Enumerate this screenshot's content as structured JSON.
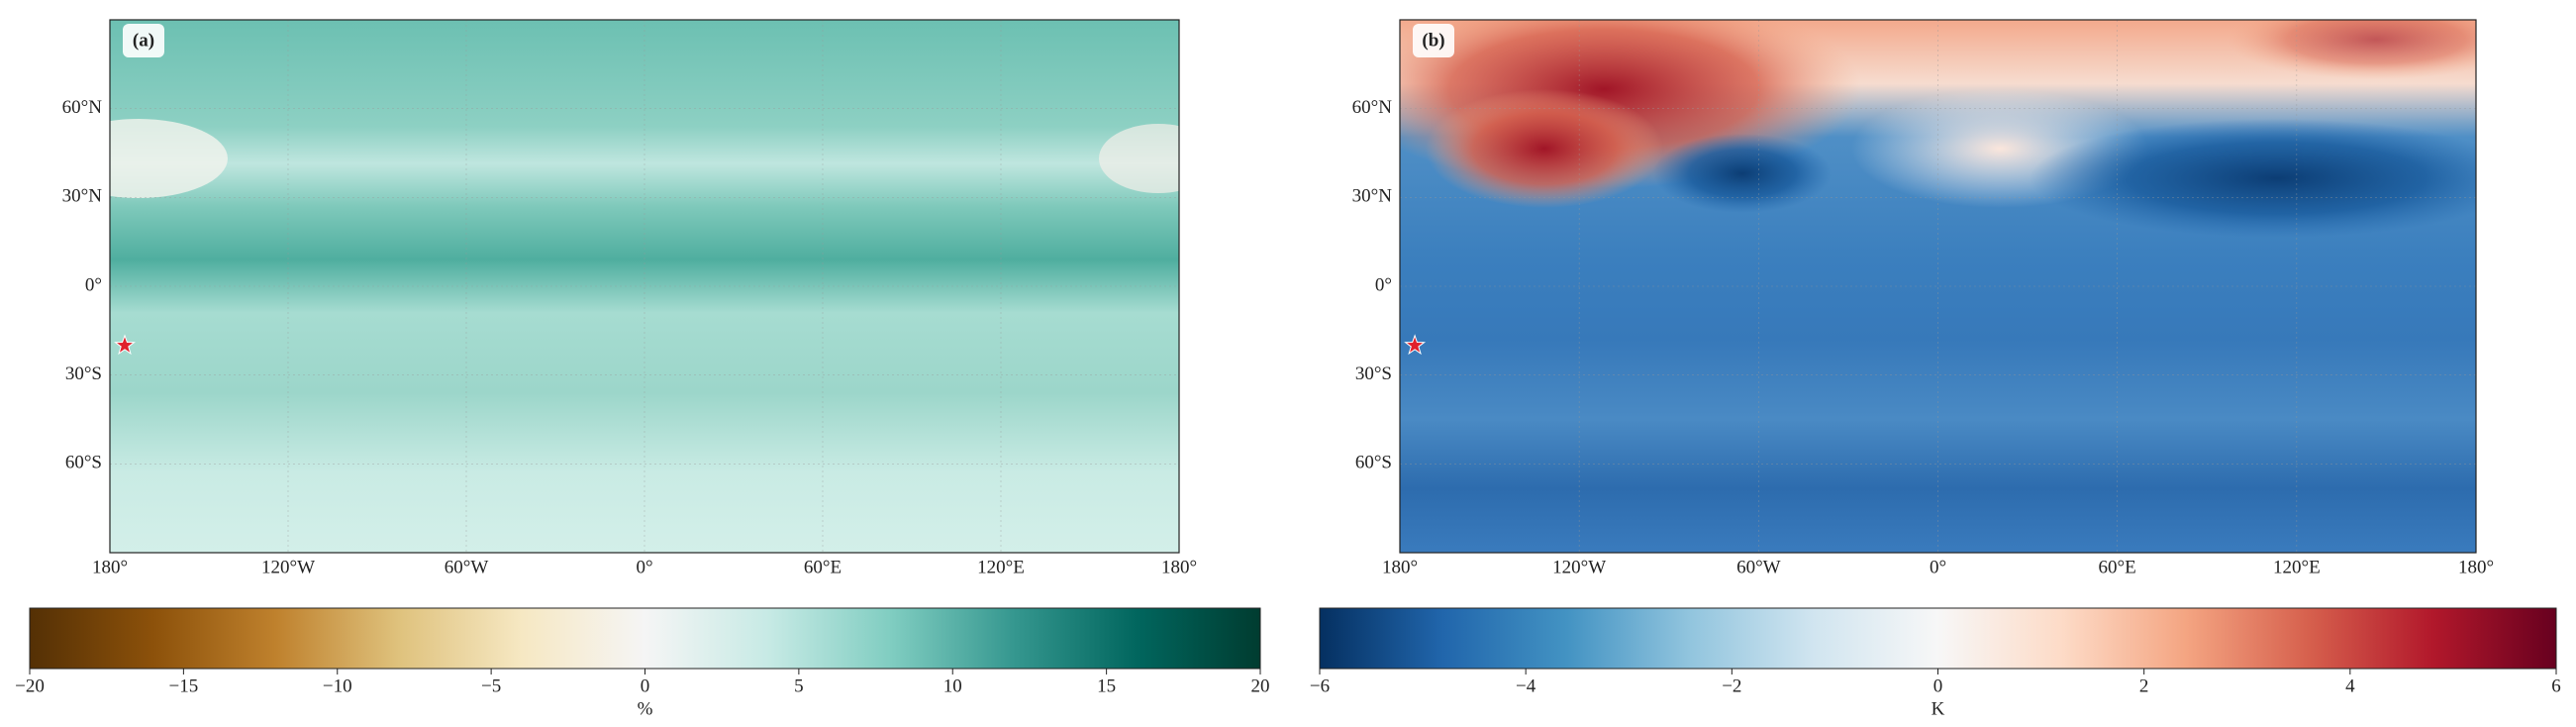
{
  "chart_data": [
    {
      "type": "map",
      "label": "(a)",
      "xlim": [
        -180,
        180
      ],
      "ylim": [
        -90,
        90
      ],
      "xticks": [
        {
          "value": -180,
          "label": "180°"
        },
        {
          "value": -120,
          "label": "120°W"
        },
        {
          "value": -60,
          "label": "60°W"
        },
        {
          "value": 0,
          "label": "0°"
        },
        {
          "value": 60,
          "label": "60°E"
        },
        {
          "value": 120,
          "label": "120°E"
        },
        {
          "value": 180,
          "label": "180°"
        }
      ],
      "yticks": [
        {
          "value": 60,
          "label": "60°N"
        },
        {
          "value": 30,
          "label": "30°N"
        },
        {
          "value": 0,
          "label": "0°"
        },
        {
          "value": -30,
          "label": "30°S"
        },
        {
          "value": -60,
          "label": "60°S"
        }
      ],
      "marker": {
        "lon": -175,
        "lat": -20,
        "color": "#e0202a"
      },
      "colorbar": {
        "label": "%",
        "lim": [
          -20,
          20
        ],
        "ticks": [
          {
            "value": -20,
            "label": "−20"
          },
          {
            "value": -15,
            "label": "−15"
          },
          {
            "value": -10,
            "label": "−10"
          },
          {
            "value": -5,
            "label": "−5"
          },
          0,
          5,
          10,
          15,
          20
        ],
        "colors": [
          "#543005",
          "#8c510a",
          "#bf812d",
          "#dfc27d",
          "#f6e8c3",
          "#f5f5f5",
          "#c7eae5",
          "#80cdc1",
          "#35978f",
          "#01665e",
          "#003c30"
        ]
      }
    },
    {
      "type": "map",
      "label": "(b)",
      "xlim": [
        -180,
        180
      ],
      "ylim": [
        -90,
        90
      ],
      "xticks": [
        {
          "value": -180,
          "label": "180°"
        },
        {
          "value": -120,
          "label": "120°W"
        },
        {
          "value": -60,
          "label": "60°W"
        },
        {
          "value": 0,
          "label": "0°"
        },
        {
          "value": 60,
          "label": "60°E"
        },
        {
          "value": 120,
          "label": "120°E"
        },
        {
          "value": 180,
          "label": "180°"
        }
      ],
      "yticks": [
        {
          "value": 60,
          "label": "60°N"
        },
        {
          "value": 30,
          "label": "30°N"
        },
        {
          "value": 0,
          "label": "0°"
        },
        {
          "value": -30,
          "label": "30°S"
        },
        {
          "value": -60,
          "label": "60°S"
        }
      ],
      "marker": {
        "lon": -175,
        "lat": -20,
        "color": "#e0202a"
      },
      "colorbar": {
        "label": "K",
        "lim": [
          -6,
          6
        ],
        "ticks": [
          {
            "value": -6,
            "label": "−6"
          },
          {
            "value": -4,
            "label": "−4"
          },
          {
            "value": -2,
            "label": "−2"
          },
          0,
          2,
          4,
          6
        ],
        "colors": [
          "#053061",
          "#2166ac",
          "#4393c3",
          "#92c5de",
          "#d1e5f0",
          "#f7f7f7",
          "#fddbc7",
          "#f4a582",
          "#d6604d",
          "#b2182b",
          "#67001f"
        ]
      }
    }
  ]
}
